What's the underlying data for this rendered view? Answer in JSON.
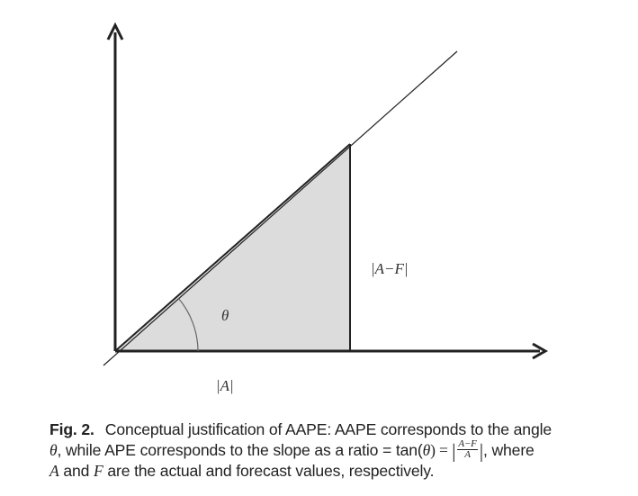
{
  "figure": {
    "labels": {
      "opposite": "|A−F|",
      "angle": "θ",
      "adjacent": "|A|"
    }
  },
  "caption": {
    "fig_label": "Fig. 2.",
    "text_1": "Conceptual justification of AAPE: AAPE corresponds to the angle",
    "theta": "θ",
    "text_2": ", while APE corresponds to the slope as a ratio = tan(",
    "theta_2": "θ",
    "text_3": ") = ",
    "frac_num": "A−F",
    "frac_den": "A",
    "text_4": ", where",
    "var_a": "A",
    "text_5": " and ",
    "var_f": "F",
    "text_6": " are the actual and forecast values, respectively."
  }
}
